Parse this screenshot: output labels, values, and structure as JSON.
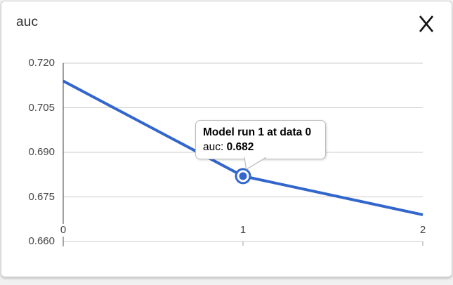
{
  "header": {
    "title": "auc"
  },
  "icons": {
    "close": "✕"
  },
  "tooltip": {
    "title": "Model run 1 at data 0",
    "metric_label": "auc:",
    "value": "0.682"
  },
  "chart_data": {
    "type": "line",
    "title": "auc",
    "x": [
      0,
      1,
      2
    ],
    "series": [
      {
        "name": "auc",
        "color": "#3366cc",
        "values": [
          0.714,
          0.682,
          0.669
        ]
      }
    ],
    "selected_point": {
      "x": 1,
      "value": 0.682
    },
    "xlim": [
      0,
      2
    ],
    "ylim": [
      0.66,
      0.72
    ],
    "xticks": [
      "0",
      "1",
      "2"
    ],
    "yticks": [
      "0.660",
      "0.675",
      "0.690",
      "0.705",
      "0.720"
    ],
    "grid": true,
    "legend": "none",
    "colors": {
      "line": "#3366cc",
      "gridline": "#cccccc",
      "axis_line": "#424242",
      "minor_tick": "#9e9e9e",
      "tick_label": "#444444"
    }
  }
}
